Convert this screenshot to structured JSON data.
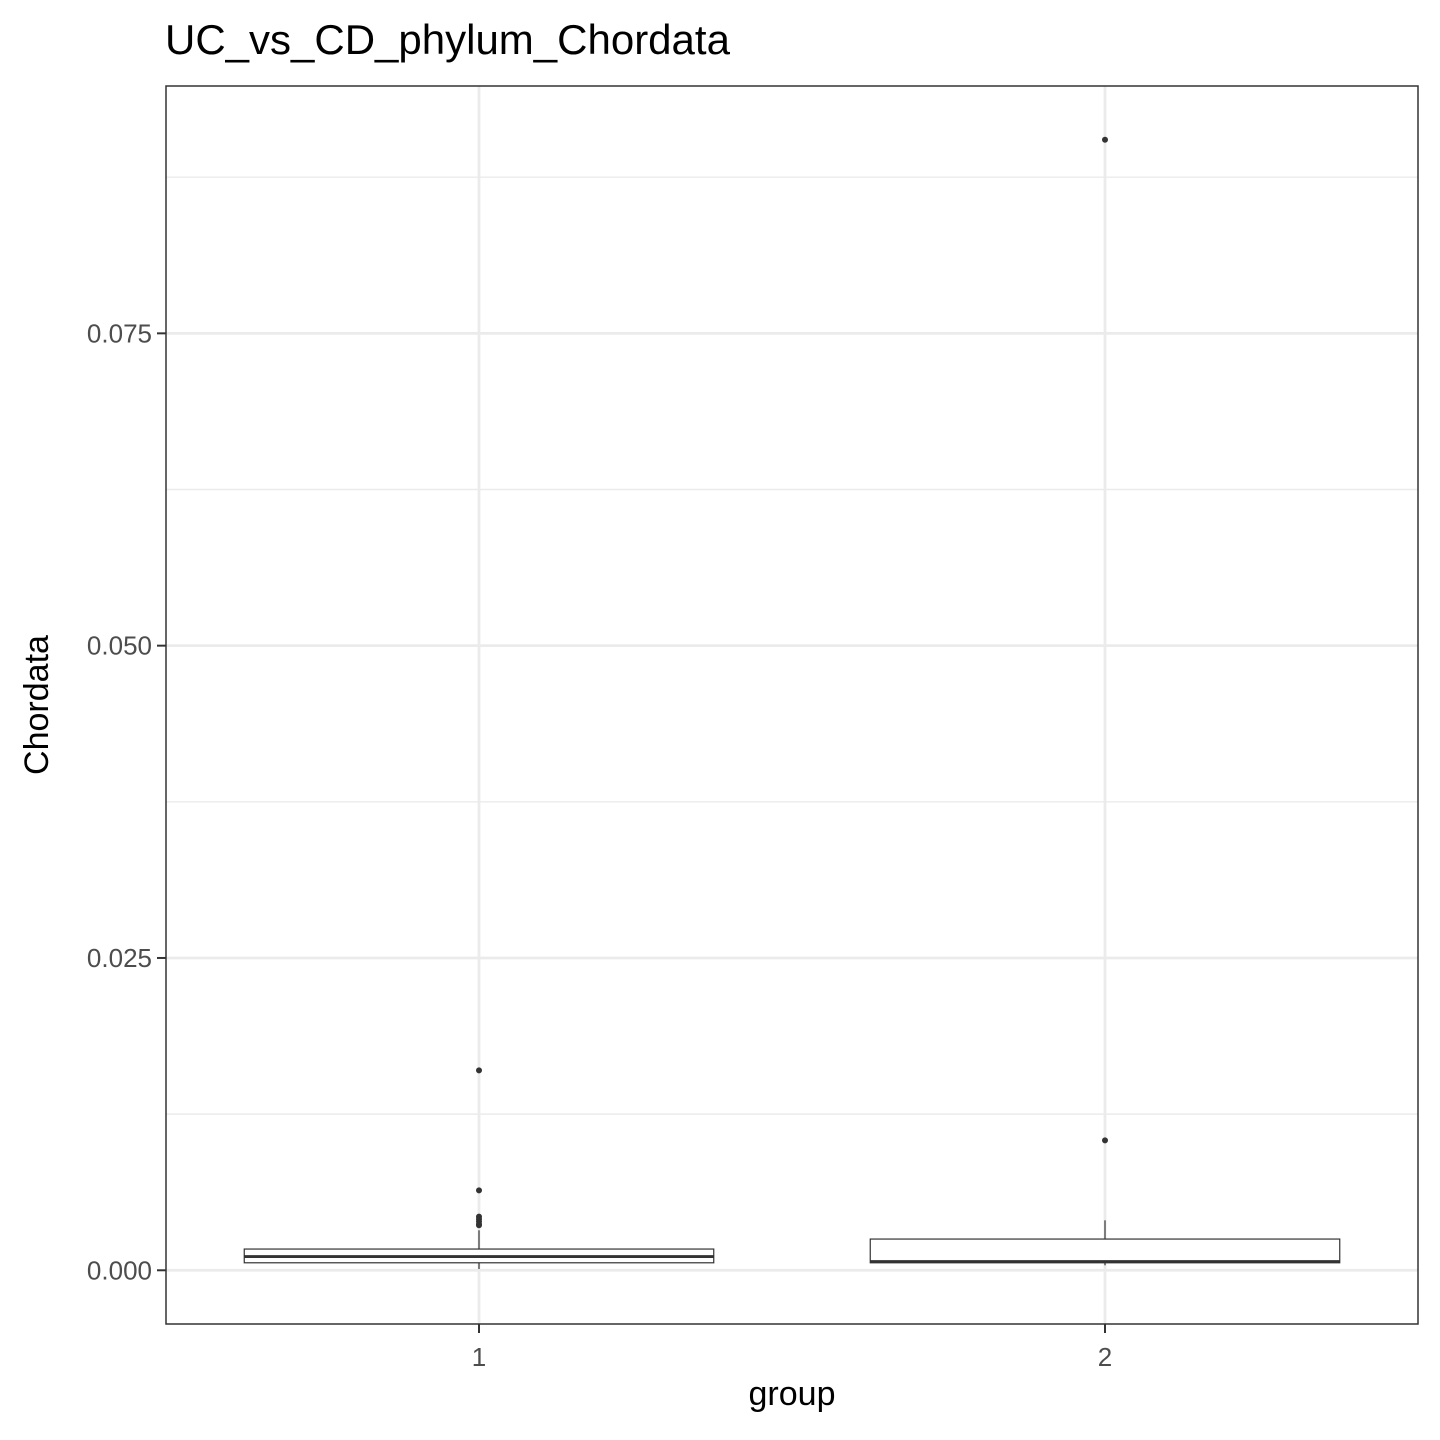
{
  "chart_data": {
    "type": "boxplot",
    "title": "UC_vs_CD_phylum_Chordata",
    "xlabel": "group",
    "ylabel": "Chordata",
    "categories": [
      "1",
      "2"
    ],
    "ylim": [
      -0.0043,
      0.0948
    ],
    "yticks": [
      "0.000",
      "0.025",
      "0.050",
      "0.075"
    ],
    "ytick_values": [
      0,
      0.025,
      0.05,
      0.075
    ],
    "grid": true,
    "boxes": [
      {
        "group": "1",
        "whisker_low": 0.0001,
        "q1": 0.0006,
        "median": 0.0011,
        "q3": 0.0017,
        "whisker_high": 0.0032,
        "outliers": [
          0.016,
          0.0064,
          0.0043,
          0.0041,
          0.0039,
          0.0037,
          0.0036
        ]
      },
      {
        "group": "2",
        "whisker_low": 0.0004,
        "q1": 0.0006,
        "median": 0.0007,
        "q3": 0.0025,
        "whisker_high": 0.004,
        "outliers": [
          0.0104,
          0.0905
        ]
      }
    ],
    "colors": {
      "box_fill": "#ffffff",
      "box_stroke": "#333333",
      "grid": "#ebebeb",
      "panel_border": "#333333"
    }
  }
}
